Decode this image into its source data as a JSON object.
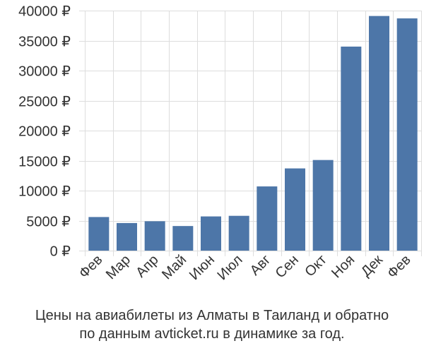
{
  "chart_data": {
    "type": "bar",
    "categories": [
      "Фев",
      "Мар",
      "Апр",
      "Май",
      "Июн",
      "Июл",
      "Авг",
      "Сен",
      "Окт",
      "Ноя",
      "Дек",
      "Фев"
    ],
    "values": [
      5600,
      4600,
      4900,
      4100,
      5700,
      5800,
      10700,
      13700,
      15100,
      34000,
      39100,
      38700
    ],
    "ytick_labels": [
      "0 ₽",
      "5000 ₽",
      "10000 ₽",
      "15000 ₽",
      "20000 ₽",
      "25000 ₽",
      "30000 ₽",
      "35000 ₽",
      "40000 ₽"
    ],
    "yticks": [
      0,
      5000,
      10000,
      15000,
      20000,
      25000,
      30000,
      35000,
      40000
    ],
    "ylim": [
      0,
      40000
    ],
    "grid": true,
    "bar_color": "#4d76a8",
    "grid_color": "#dddddd"
  },
  "caption": {
    "line1": "Цены на авиабилеты из Алматы в Таиланд и обратно",
    "line2": "по данным avticket.ru в динамике за год."
  }
}
